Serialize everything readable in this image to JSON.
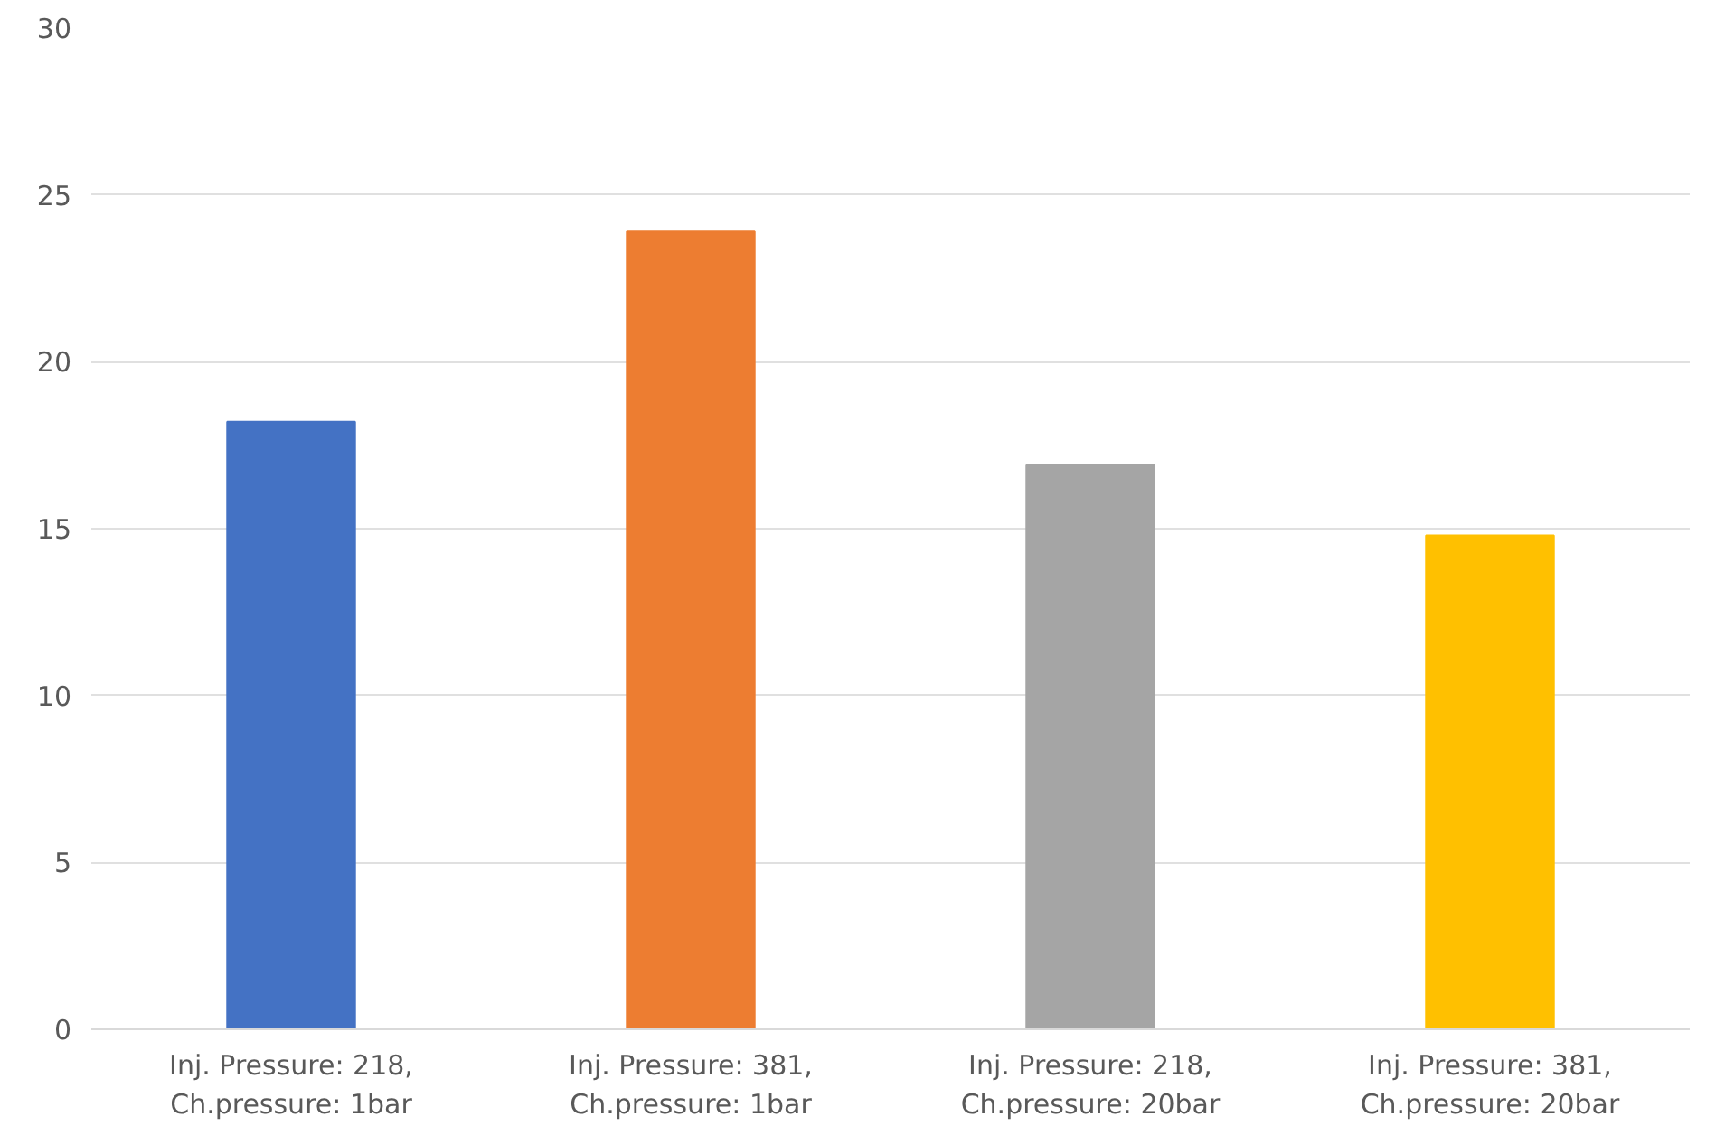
{
  "chart_data": {
    "type": "bar",
    "categories": [
      "Inj. Pressure: 218,\nCh.pressure: 1bar",
      "Inj. Pressure: 381,\nCh.pressure: 1bar",
      "Inj. Pressure: 218,\nCh.pressure: 20bar",
      "Inj. Pressure: 381,\nCh.pressure: 20bar"
    ],
    "values": [
      18.2,
      23.9,
      16.9,
      14.8
    ],
    "colors": [
      "#4472c4",
      "#ed7d31",
      "#a5a5a5",
      "#ffc000"
    ],
    "ylim": [
      0,
      30
    ],
    "yticks": [
      0,
      5,
      10,
      15,
      20,
      25,
      30
    ],
    "grid": "y"
  }
}
